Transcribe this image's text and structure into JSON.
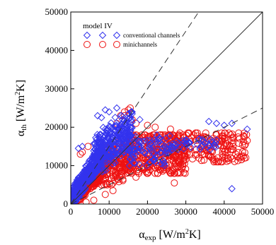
{
  "chart_data": {
    "type": "scatter",
    "title": "",
    "xlabel": {
      "symbol": "α",
      "sub": "exp",
      "unit_pre": " [W/m",
      "unit_sup": "2",
      "unit_post": "K]"
    },
    "ylabel": {
      "symbol": "α",
      "sub": "th",
      "unit_pre": " [W/m",
      "unit_sup": "2",
      "unit_post": "K]"
    },
    "xlim": [
      0,
      50000
    ],
    "ylim": [
      0,
      50000
    ],
    "xticks": [
      0,
      10000,
      20000,
      30000,
      40000,
      50000
    ],
    "yticks": [
      0,
      10000,
      20000,
      30000,
      40000,
      50000
    ],
    "xtick_labels": [
      "0",
      "10000",
      "20000",
      "30000",
      "40000",
      "50000"
    ],
    "ytick_labels": [
      "0",
      "10000",
      "20000",
      "30000",
      "40000",
      "50000"
    ],
    "grid": false,
    "legend": {
      "title": "model IV",
      "position": "top-left",
      "entries": [
        {
          "label": "conventional channels",
          "marker": "diamond",
          "color": "#3333ee"
        },
        {
          "label": "minichannels",
          "marker": "circle",
          "color": "#ee1111"
        }
      ]
    },
    "reference_lines": [
      {
        "style": "solid",
        "slope": 1.0
      },
      {
        "style": "dashed",
        "slope": 1.5
      },
      {
        "style": "dashed",
        "slope": 0.5
      }
    ],
    "series": [
      {
        "name": "minichannels",
        "marker": "circle",
        "color": "#ee1111",
        "clusters": [
          {
            "x": [
              500,
              8000
            ],
            "y": [
              500,
              9000
            ],
            "n": 320,
            "corr": 0.85
          },
          {
            "x": [
              8000,
              16000
            ],
            "y": [
              5000,
              17000
            ],
            "n": 220,
            "corr": 0.3
          },
          {
            "x": [
              15000,
              30000
            ],
            "y": [
              8000,
              18000
            ],
            "n": 320,
            "corr": 0.0
          },
          {
            "x": [
              28000,
              46000
            ],
            "y": [
              11000,
              18500
            ],
            "n": 150,
            "corr": 0.0
          }
        ],
        "points": [
          [
            1500,
            3500
          ],
          [
            3000,
            13500
          ],
          [
            2500,
            13000
          ],
          [
            4500,
            15000
          ],
          [
            12000,
            21000
          ],
          [
            13000,
            23000
          ],
          [
            14000,
            24000
          ],
          [
            15500,
            25000
          ],
          [
            15000,
            24500
          ],
          [
            20000,
            20500
          ],
          [
            22000,
            20000
          ],
          [
            24000,
            18000
          ],
          [
            26000,
            19500
          ],
          [
            27000,
            5500
          ],
          [
            14000,
            23000
          ],
          [
            16000,
            22000
          ],
          [
            17000,
            21000
          ],
          [
            32000,
            18000
          ],
          [
            35000,
            17500
          ],
          [
            38000,
            18000
          ],
          [
            40000,
            17000
          ],
          [
            42000,
            16500
          ],
          [
            44000,
            17000
          ],
          [
            46000,
            16500
          ],
          [
            43000,
            13000
          ],
          [
            45000,
            12500
          ],
          [
            41000,
            12000
          ],
          [
            38500,
            11000
          ],
          [
            36000,
            14500
          ],
          [
            34000,
            13500
          ],
          [
            30000,
            12500
          ],
          [
            25000,
            10000
          ],
          [
            22000,
            8000
          ],
          [
            19000,
            9000
          ],
          [
            17000,
            7000
          ],
          [
            6000,
            1000
          ],
          [
            9000,
            2500
          ],
          [
            11000,
            3500
          ],
          [
            4000,
            500
          ],
          [
            1000,
            800
          ]
        ]
      },
      {
        "name": "conventional channels",
        "marker": "diamond",
        "color": "#3333ee",
        "clusters": [
          {
            "x": [
              300,
              8000
            ],
            "y": [
              500,
              14000
            ],
            "n": 350,
            "corr": 0.85
          },
          {
            "x": [
              6000,
              16000
            ],
            "y": [
              8000,
              24000
            ],
            "n": 300,
            "corr": 0.5
          },
          {
            "x": [
              15000,
              26000
            ],
            "y": [
              10000,
              18000
            ],
            "n": 90,
            "corr": 0.0
          },
          {
            "x": [
              26000,
              38000
            ],
            "y": [
              14000,
              17000
            ],
            "n": 40,
            "corr": 0.0
          }
        ],
        "points": [
          [
            36000,
            21500
          ],
          [
            38000,
            21000
          ],
          [
            40000,
            20500
          ],
          [
            42000,
            21000
          ],
          [
            46000,
            19500
          ],
          [
            42000,
            4000
          ],
          [
            35000,
            16000
          ],
          [
            33000,
            15500
          ],
          [
            31000,
            16000
          ],
          [
            2000,
            14500
          ],
          [
            3000,
            15000
          ],
          [
            9000,
            24500
          ],
          [
            10000,
            24000
          ],
          [
            7000,
            23000
          ],
          [
            8000,
            22500
          ],
          [
            12000,
            25000
          ],
          [
            16000,
            23500
          ],
          [
            18000,
            22000
          ]
        ]
      }
    ]
  }
}
